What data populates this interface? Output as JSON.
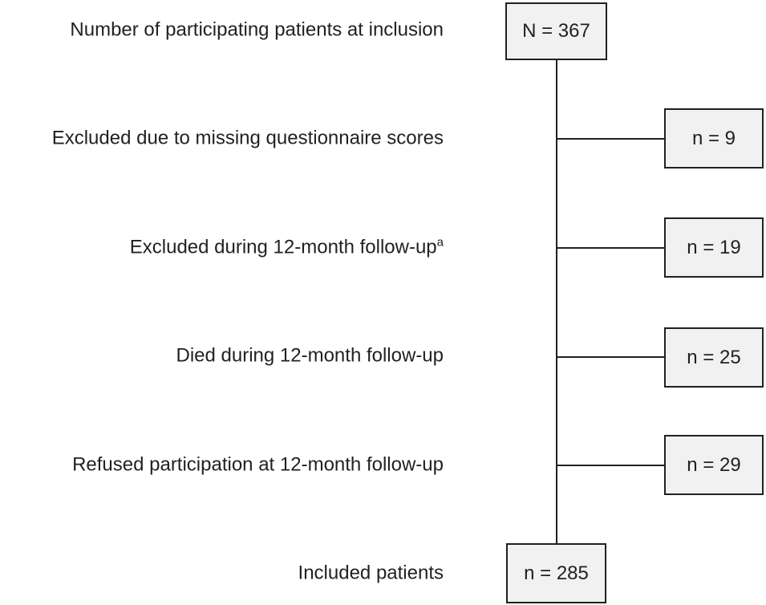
{
  "flowchart": {
    "type": "patient-flow-diagram",
    "colors": {
      "box_fill": "#f1f1f2",
      "box_border": "#231f20",
      "line": "#231f20",
      "text": "#231f20"
    },
    "top": {
      "label": "Number of participating patients at inclusion",
      "value": "N = 367"
    },
    "exclusions": [
      {
        "label": "Excluded due to missing questionnaire scores",
        "superscript": "",
        "value": "n = 9"
      },
      {
        "label": "Excluded during 12-month follow-up",
        "superscript": "a",
        "value": "n = 19"
      },
      {
        "label": "Died during 12-month follow-up",
        "superscript": "",
        "value": "n = 25"
      },
      {
        "label": "Refused participation at 12-month follow-up",
        "superscript": "",
        "value": "n = 29"
      }
    ],
    "bottom": {
      "label": "Included patients",
      "value": "n = 285"
    }
  }
}
